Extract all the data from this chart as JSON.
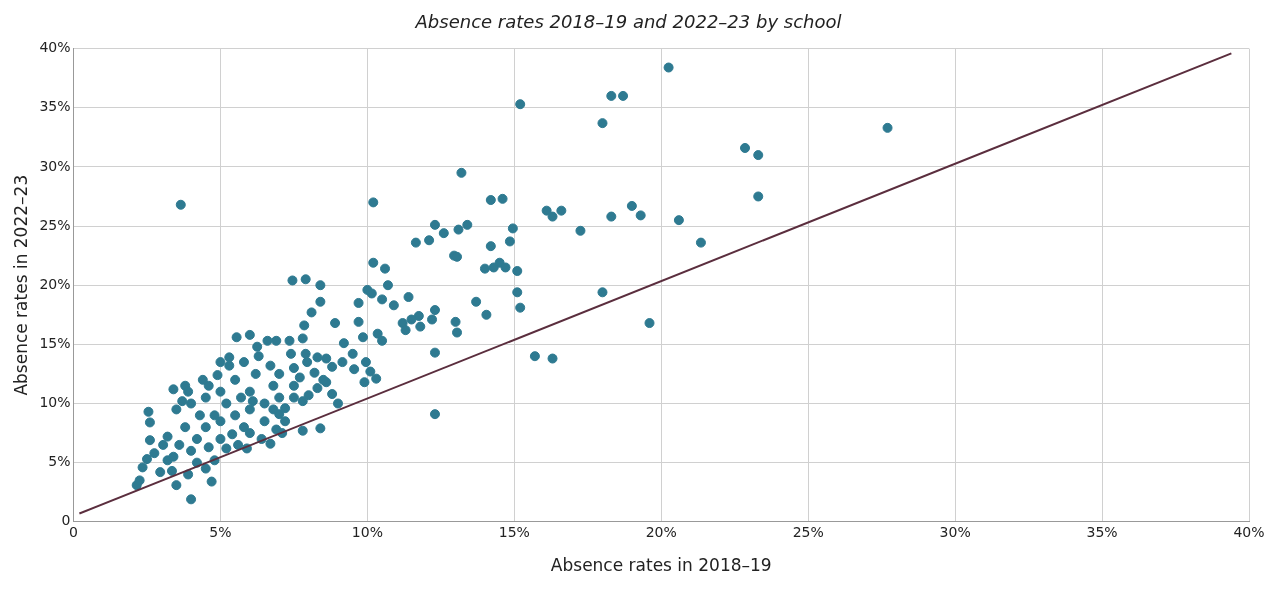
{
  "chart_data": {
    "type": "scatter",
    "title": "Absence rates 2018–19 and 2022–23 by school",
    "xlabel": "Absence rates in 2018–19",
    "ylabel": "Absence rates in 2022–23",
    "xlim": [
      0,
      40
    ],
    "ylim": [
      0,
      40
    ],
    "xticks": [
      0,
      {
        "value": 5,
        "label": "5%"
      },
      {
        "value": 10,
        "label": "10%"
      },
      {
        "value": 15,
        "label": "15%"
      },
      {
        "value": 20,
        "label": "20%"
      },
      {
        "value": 25,
        "label": "25%"
      },
      {
        "value": 30,
        "label": "30%"
      },
      {
        "value": 35,
        "label": "35%"
      },
      {
        "value": 40,
        "label": "40%"
      }
    ],
    "yticks": [
      0,
      {
        "value": 5,
        "label": "5%"
      },
      {
        "value": 10,
        "label": "10%"
      },
      {
        "value": 15,
        "label": "15%"
      },
      {
        "value": 20,
        "label": "20%"
      },
      {
        "value": 25,
        "label": "25%"
      },
      {
        "value": 30,
        "label": "30%"
      },
      {
        "value": 35,
        "label": "35%"
      },
      {
        "value": 40,
        "label": "40%"
      }
    ],
    "grid": true,
    "series": [
      {
        "marker": "circle",
        "color": "#2e7a91",
        "x": [
          3.65,
          20.25,
          18.7,
          18.3,
          15.2,
          18.0,
          27.7,
          22.85,
          23.3,
          13.2,
          23.3,
          10.2,
          14.2,
          14.6,
          19.0,
          16.1,
          16.6,
          16.3,
          19.3,
          18.3,
          20.6,
          17.25,
          21.35,
          12.3,
          12.6,
          13.1,
          13.4,
          14.95,
          14.2,
          12.1,
          11.65,
          14.85,
          10.2,
          10.6,
          12.95,
          13.05,
          14.0,
          14.5,
          14.7,
          15.1,
          14.3,
          7.9,
          7.45,
          10.7,
          8.4,
          10.0,
          10.15,
          15.1,
          18.0,
          10.5,
          10.9,
          9.7,
          8.4,
          11.4,
          13.7,
          15.2,
          14.05,
          12.3,
          8.1,
          11.75,
          11.5,
          11.2,
          11.8,
          12.2,
          11.3,
          13.0,
          13.05,
          19.6,
          8.9,
          7.85,
          9.7,
          10.35,
          10.5,
          9.85,
          9.2,
          15.7,
          16.3,
          12.3,
          9.95,
          12.3,
          10.3,
          9.9,
          10.1,
          9.0,
          8.4,
          7.8,
          7.1,
          6.7,
          4.7,
          4.0,
          3.5,
          2.15,
          2.25,
          2.35,
          2.5,
          2.55,
          2.6,
          2.6,
          3.4,
          3.8,
          5.55,
          6.0,
          6.25,
          5.3,
          5.0,
          6.6,
          6.9,
          7.35,
          7.4,
          7.8,
          7.9,
          7.95,
          8.3,
          8.6,
          8.8,
          9.15,
          9.5,
          9.55,
          8.6,
          8.3,
          8.8,
          8.0,
          7.5,
          7.0,
          2.75,
          3.05,
          2.95,
          3.2,
          3.35,
          4,
          4.2,
          4.5,
          4.3,
          4,
          4.5,
          4.8,
          5,
          5,
          5.2,
          5,
          5.5,
          5.5,
          5.8,
          5.6,
          6,
          6,
          6,
          6.2,
          6.5,
          6.5,
          6.8,
          6.8,
          7,
          7,
          7.2,
          7.5,
          7.5,
          3.8,
          3.6,
          3.4,
          3.2,
          3.5,
          3.9,
          4.6,
          4.4,
          5.3,
          5.8,
          6.3,
          6.7,
          4.8,
          5.2,
          4.2,
          5.9,
          6.4,
          6.9,
          7.2,
          7.8,
          7.7,
          8.2,
          8.5,
          3.9,
          4.5,
          4.6,
          5.7,
          6.1,
          5.4,
          4.9,
          3.7
        ],
        "values": [
          26.8,
          38.4,
          36.0,
          36.0,
          35.3,
          33.7,
          33.3,
          31.6,
          31.0,
          29.5,
          27.5,
          27.0,
          27.2,
          27.3,
          26.7,
          26.3,
          26.3,
          25.8,
          25.9,
          25.8,
          25.5,
          24.6,
          23.6,
          25.1,
          24.4,
          24.7,
          25.1,
          24.8,
          23.3,
          23.8,
          23.6,
          23.7,
          21.9,
          21.4,
          22.5,
          22.4,
          21.4,
          21.9,
          21.5,
          21.2,
          21.5,
          20.5,
          20.4,
          20.0,
          20.0,
          19.6,
          19.3,
          19.4,
          19.4,
          18.8,
          18.3,
          18.5,
          18.6,
          19.0,
          18.6,
          18.1,
          17.5,
          17.9,
          17.7,
          17.4,
          17.1,
          16.8,
          16.5,
          17.1,
          16.2,
          16.9,
          16.0,
          16.8,
          16.8,
          16.6,
          16.9,
          15.9,
          15.3,
          15.6,
          15.1,
          14.0,
          13.8,
          14.3,
          13.5,
          9.1,
          12.1,
          11.8,
          12.7,
          10.0,
          7.9,
          7.7,
          7.5,
          6.6,
          3.4,
          1.9,
          3.1,
          3.1,
          3.5,
          4.6,
          5.3,
          9.3,
          8.4,
          6.9,
          11.2,
          11.5,
          15.6,
          15.8,
          14.8,
          13.9,
          13.5,
          15.3,
          15.3,
          15.3,
          14.2,
          15.5,
          14.2,
          13.5,
          13.9,
          13.8,
          13.1,
          13.5,
          14.2,
          12.9,
          11.8,
          11.3,
          10.8,
          10.7,
          10.5,
          9.1,
          5.8,
          6.5,
          4.2,
          5.2,
          4.3,
          6,
          7,
          8,
          9,
          10,
          10.5,
          9,
          7,
          8.5,
          10,
          11,
          12,
          9,
          8,
          6.5,
          7.5,
          9.5,
          11,
          12.5,
          10,
          8.5,
          11.5,
          9.5,
          12.5,
          10.5,
          8.5,
          11.5,
          13,
          8,
          6.5,
          5.5,
          7.2,
          9.5,
          11,
          11.5,
          12,
          13.2,
          13.5,
          14,
          13.2,
          5.2,
          6.2,
          5,
          6.2,
          7,
          7.8,
          9.6,
          10.2,
          12.2,
          12.6,
          12.0,
          4.0,
          4.5,
          6.3,
          10.5,
          10.2,
          7.4,
          12.4,
          10.2
        ]
      },
      {
        "type": "line",
        "color": "#5b2e3e",
        "x": [
          0.2,
          39.4
        ],
        "values": [
          0.7,
          39.6
        ]
      }
    ]
  }
}
